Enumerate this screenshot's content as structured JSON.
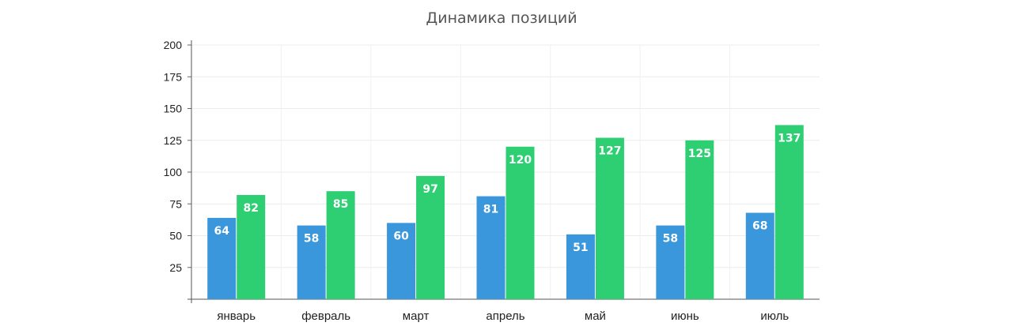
{
  "chart_data": {
    "type": "bar",
    "title": "Динамика позиций",
    "xlabel": "",
    "ylabel": "",
    "categories": [
      "январь",
      "февраль",
      "март",
      "апрель",
      "май",
      "июнь",
      "июль"
    ],
    "series": [
      {
        "values": [
          64,
          58,
          60,
          81,
          51,
          58,
          68
        ],
        "color": "#3a97dc"
      },
      {
        "values": [
          82,
          85,
          97,
          120,
          127,
          125,
          137
        ],
        "color": "#2ecf72"
      }
    ],
    "ylim": [
      0,
      200
    ],
    "yticks": [
      25,
      50,
      75,
      100,
      125,
      150,
      175,
      200
    ],
    "grid": true,
    "legend": "none"
  }
}
